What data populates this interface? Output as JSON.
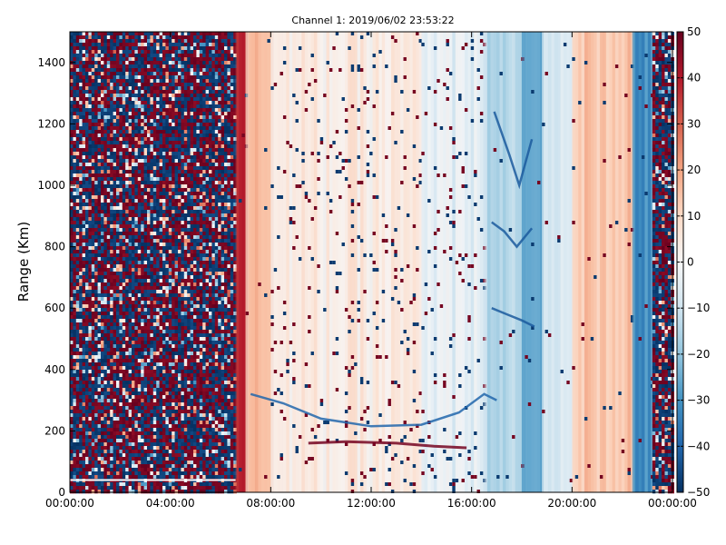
{
  "chart_data": {
    "type": "heatmap",
    "title": "Channel 1: 2019/06/02 23:53:22",
    "xlabel": "",
    "ylabel": "Range (Km)",
    "x_ticks": [
      "00:00:00",
      "04:00:00",
      "08:00:00",
      "12:00:00",
      "16:00:00",
      "20:00:00",
      "00:00:00"
    ],
    "x_range_hours": [
      0,
      24
    ],
    "y_ticks": [
      "0",
      "200",
      "400",
      "600",
      "800",
      "1000",
      "1200",
      "1400"
    ],
    "ylim": [
      0,
      1500
    ],
    "colorbar": {
      "ticks": [
        "50",
        "40",
        "30",
        "20",
        "10",
        "0",
        "−10",
        "−20",
        "−30",
        "−40",
        "−50"
      ],
      "range": [
        -50,
        50
      ],
      "colormap": "RdBu_r"
    },
    "regions": [
      {
        "hours": [
          0.0,
          6.6
        ],
        "description": "noise",
        "level": 0
      },
      {
        "hours": [
          6.6,
          7.0
        ],
        "level": 40
      },
      {
        "hours": [
          7.0,
          8.0
        ],
        "level": 15
      },
      {
        "hours": [
          8.0,
          14.0
        ],
        "level": 4
      },
      {
        "hours": [
          14.0,
          16.5
        ],
        "level": -5
      },
      {
        "hours": [
          16.5,
          18.0
        ],
        "level": -15
      },
      {
        "hours": [
          18.0,
          18.8
        ],
        "level": -25
      },
      {
        "hours": [
          18.8,
          20.0
        ],
        "level": -6
      },
      {
        "hours": [
          20.0,
          22.4
        ],
        "level": 14
      },
      {
        "hours": [
          22.4,
          23.2
        ],
        "level": -30
      },
      {
        "hours": [
          23.2,
          24.0
        ],
        "description": "noise",
        "level": 0
      }
    ]
  }
}
